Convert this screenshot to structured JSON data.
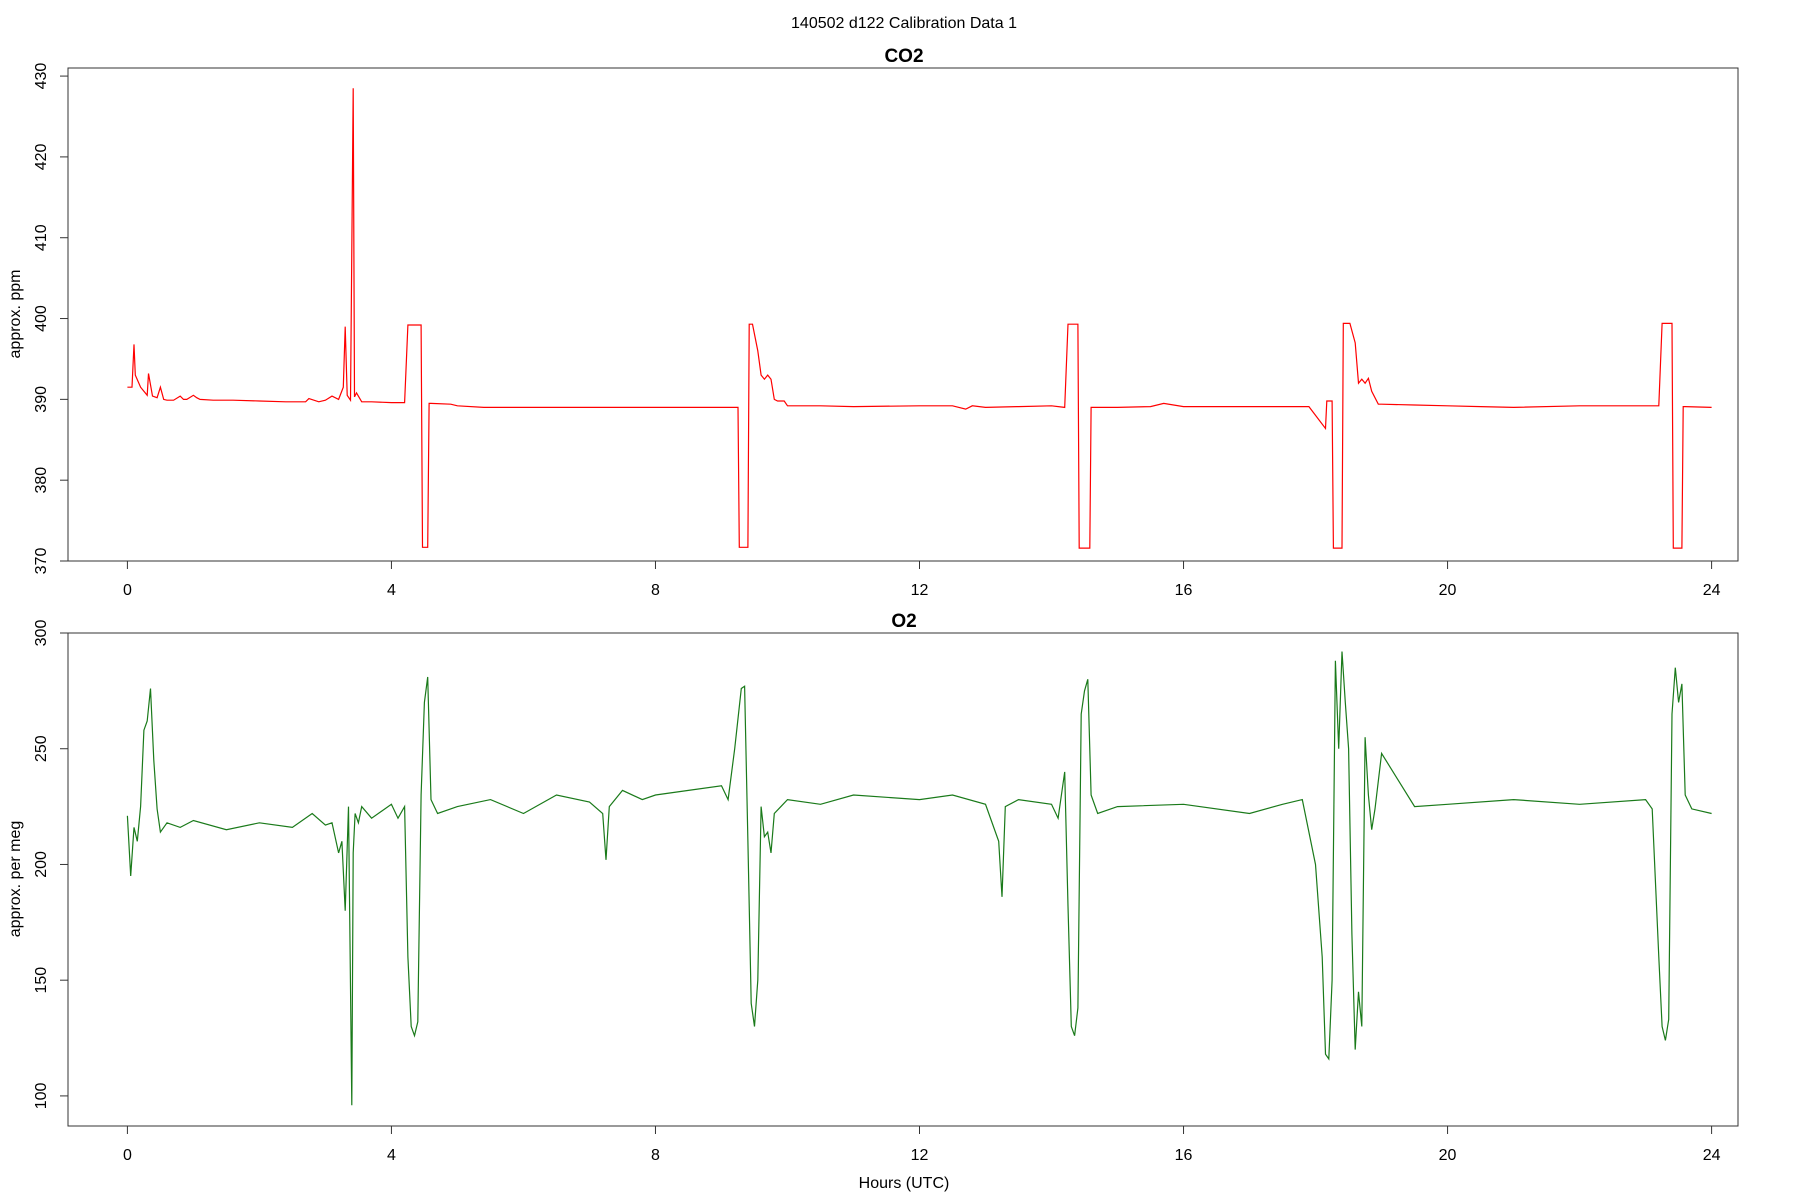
{
  "figure": {
    "title": "140502   d122   Calibration Data 1",
    "xlabel": "Hours (UTC)"
  },
  "chart_data": [
    {
      "type": "line",
      "title": "CO2",
      "xlabel": "",
      "ylabel": "approx. ppm",
      "xlim": [
        -0.9,
        24.4
      ],
      "ylim": [
        370,
        431
      ],
      "xticks": [
        "0",
        "4",
        "8",
        "12",
        "16",
        "20",
        "24"
      ],
      "yticks": [
        "370",
        "380",
        "390",
        "400",
        "410",
        "420",
        "430"
      ],
      "grid": false,
      "series": [
        {
          "color": "#ff0000",
          "x": [
            0.0,
            0.07,
            0.1,
            0.12,
            0.2,
            0.25,
            0.3,
            0.32,
            0.38,
            0.45,
            0.5,
            0.55,
            0.6,
            0.7,
            0.8,
            0.85,
            0.9,
            1.0,
            1.05,
            1.1,
            1.3,
            1.6,
            2.0,
            2.4,
            2.7,
            2.75,
            2.9,
            3.0,
            3.1,
            3.2,
            3.27,
            3.3,
            3.33,
            3.38,
            3.42,
            3.44,
            3.47,
            3.55,
            3.7,
            4.0,
            4.2,
            4.25,
            4.27,
            4.45,
            4.47,
            4.55,
            4.57,
            4.6,
            4.9,
            5.0,
            5.4,
            6.0,
            7.0,
            8.0,
            9.0,
            9.2,
            9.25,
            9.27,
            9.4,
            9.42,
            9.45,
            9.47,
            9.55,
            9.6,
            9.65,
            9.7,
            9.75,
            9.8,
            9.85,
            9.95,
            10.0,
            10.5,
            11.0,
            12.0,
            12.5,
            12.7,
            12.8,
            13.0,
            13.5,
            14.0,
            14.2,
            14.25,
            14.27,
            14.4,
            14.42,
            14.58,
            14.6,
            14.65,
            15.0,
            15.5,
            15.7,
            16.0,
            17.0,
            17.9,
            18.15,
            18.17,
            18.25,
            18.27,
            18.4,
            18.42,
            18.5,
            18.52,
            18.6,
            18.65,
            18.7,
            18.75,
            18.8,
            18.85,
            18.95,
            19.0,
            19.5,
            20.0,
            20.5,
            21.0,
            22.0,
            23.0,
            23.2,
            23.25,
            23.27,
            23.4,
            23.42,
            23.55,
            23.57,
            23.6,
            24.0
          ],
          "y": [
            391.5,
            391.5,
            396.8,
            393.0,
            391.5,
            391.0,
            390.5,
            393.2,
            390.4,
            390.2,
            391.5,
            390.0,
            389.9,
            389.9,
            390.4,
            390.0,
            390.0,
            390.5,
            390.2,
            390.0,
            389.9,
            389.9,
            389.8,
            389.7,
            389.7,
            390.1,
            389.7,
            389.9,
            390.4,
            390.0,
            391.5,
            399.0,
            390.5,
            389.9,
            428.5,
            390.3,
            390.8,
            389.7,
            389.7,
            389.6,
            389.6,
            399.2,
            399.2,
            399.2,
            371.7,
            371.7,
            389.5,
            389.5,
            389.4,
            389.2,
            389.0,
            389.0,
            389.0,
            389.0,
            389.0,
            389.0,
            389.0,
            371.7,
            371.7,
            399.3,
            399.3,
            399.3,
            396.0,
            393.0,
            392.5,
            393.0,
            392.5,
            390.0,
            389.8,
            389.8,
            389.2,
            389.2,
            389.1,
            389.2,
            389.2,
            388.8,
            389.2,
            389.0,
            389.1,
            389.2,
            389.0,
            399.3,
            399.3,
            399.3,
            371.6,
            371.6,
            389.0,
            389.0,
            389.0,
            389.1,
            389.5,
            389.1,
            389.1,
            389.1,
            386.4,
            389.8,
            389.8,
            371.6,
            371.6,
            399.4,
            399.4,
            399.4,
            397.0,
            392.0,
            392.5,
            392.0,
            392.6,
            391.0,
            389.4,
            389.4,
            389.3,
            389.2,
            389.1,
            389.0,
            389.2,
            389.2,
            389.2,
            399.4,
            399.4,
            399.4,
            371.6,
            371.6,
            389.1,
            389.1,
            389.0
          ]
        }
      ]
    },
    {
      "type": "line",
      "title": "O2",
      "xlabel": "Hours (UTC)",
      "ylabel": "approx. per meg",
      "xlim": [
        -0.9,
        24.4
      ],
      "ylim": [
        87,
        300
      ],
      "xticks": [
        "0",
        "4",
        "8",
        "12",
        "16",
        "20",
        "24"
      ],
      "yticks": [
        "100",
        "150",
        "200",
        "250",
        "300"
      ],
      "grid": false,
      "series": [
        {
          "color": "#1a7a1a",
          "x": [
            0.0,
            0.05,
            0.1,
            0.15,
            0.2,
            0.25,
            0.3,
            0.35,
            0.4,
            0.45,
            0.5,
            0.6,
            0.8,
            1.0,
            1.5,
            2.0,
            2.5,
            2.8,
            3.0,
            3.1,
            3.2,
            3.25,
            3.3,
            3.35,
            3.4,
            3.42,
            3.45,
            3.5,
            3.55,
            3.7,
            4.0,
            4.1,
            4.2,
            4.25,
            4.3,
            4.35,
            4.4,
            4.45,
            4.5,
            4.55,
            4.6,
            4.7,
            5.0,
            5.5,
            6.0,
            6.5,
            7.0,
            7.2,
            7.25,
            7.3,
            7.5,
            7.8,
            8.0,
            8.5,
            9.0,
            9.1,
            9.2,
            9.3,
            9.35,
            9.4,
            9.45,
            9.5,
            9.55,
            9.6,
            9.65,
            9.7,
            9.75,
            9.8,
            9.9,
            10.0,
            10.5,
            11.0,
            12.0,
            12.5,
            13.0,
            13.2,
            13.25,
            13.3,
            13.5,
            14.0,
            14.1,
            14.2,
            14.25,
            14.3,
            14.35,
            14.4,
            14.45,
            14.5,
            14.55,
            14.6,
            14.7,
            15.0,
            16.0,
            17.0,
            17.5,
            17.8,
            18.0,
            18.1,
            18.15,
            18.2,
            18.25,
            18.3,
            18.35,
            18.4,
            18.45,
            18.5,
            18.55,
            18.6,
            18.65,
            18.7,
            18.75,
            18.8,
            18.85,
            18.9,
            19.0,
            19.5,
            20.0,
            21.0,
            22.0,
            23.0,
            23.1,
            23.2,
            23.25,
            23.3,
            23.35,
            23.4,
            23.45,
            23.5,
            23.55,
            23.6,
            23.7,
            24.0
          ],
          "y": [
            221,
            195,
            216,
            210,
            225,
            258,
            262,
            276,
            245,
            224,
            214,
            218,
            216,
            219,
            215,
            218,
            216,
            222,
            217,
            218,
            205,
            210,
            180,
            225,
            96,
            205,
            222,
            218,
            225,
            220,
            226,
            220,
            225,
            160,
            130,
            126,
            132,
            230,
            270,
            281,
            228,
            222,
            225,
            228,
            222,
            230,
            227,
            222,
            202,
            225,
            232,
            228,
            230,
            232,
            234,
            228,
            250,
            276,
            277,
            210,
            140,
            130,
            150,
            225,
            212,
            214,
            205,
            222,
            225,
            228,
            226,
            230,
            228,
            230,
            226,
            210,
            186,
            225,
            228,
            226,
            220,
            240,
            182,
            130,
            126,
            138,
            265,
            275,
            280,
            230,
            222,
            225,
            226,
            222,
            226,
            228,
            200,
            160,
            118,
            116,
            150,
            288,
            250,
            292,
            270,
            250,
            170,
            120,
            145,
            130,
            255,
            230,
            215,
            224,
            248,
            225,
            226,
            228,
            226,
            228,
            224,
            160,
            130,
            124,
            133,
            265,
            285,
            270,
            278,
            230,
            224,
            222
          ]
        }
      ]
    }
  ]
}
